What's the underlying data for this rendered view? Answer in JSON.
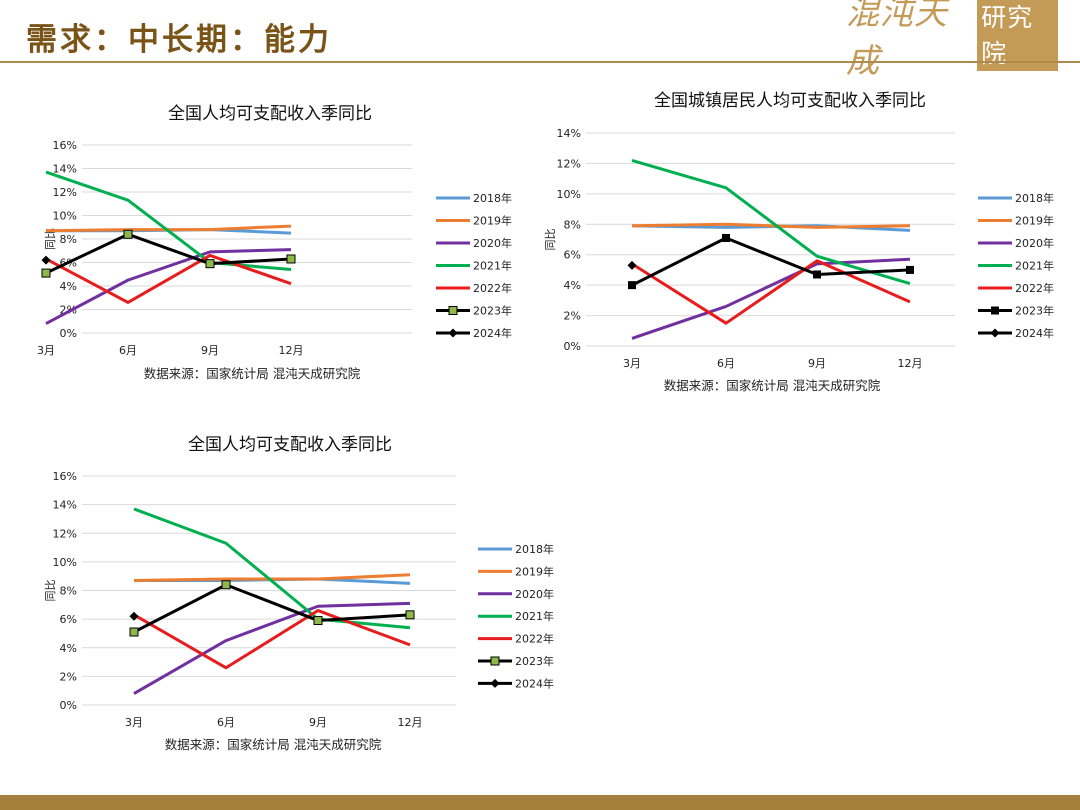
{
  "header": {
    "title": "需求：中长期：能力",
    "brand_main": "混沌天成",
    "brand_sub": "研究院"
  },
  "colors": {
    "header_text": "#7a5417",
    "brand": "#c49a57",
    "rule": "#b08a4c",
    "footer": "#a57f3c"
  },
  "chart_data": [
    {
      "type": "line",
      "title": "全国人均可支配收入季同比",
      "ylabel": "同比",
      "categories": [
        "3月",
        "6月",
        "9月",
        "12月"
      ],
      "ylim": [
        0,
        16
      ],
      "yticks": [
        "0%",
        "2%",
        "4%",
        "6%",
        "8%",
        "10%",
        "12%",
        "14%",
        "16%"
      ],
      "grid": true,
      "legend_position": "right",
      "source": "数据来源：国家统计局 混沌天成研究院",
      "series": [
        {
          "name": "2018年",
          "color": "#5b9bd5",
          "marker": "none",
          "values": [
            8.7,
            8.7,
            8.8,
            8.5
          ]
        },
        {
          "name": "2019年",
          "color": "#ed7d31",
          "marker": "none",
          "values": [
            8.7,
            8.8,
            8.8,
            9.1
          ]
        },
        {
          "name": "2020年",
          "color": "#7030a0",
          "marker": "none",
          "values": [
            0.8,
            4.5,
            6.9,
            7.1
          ]
        },
        {
          "name": "2021年",
          "color": "#00b050",
          "marker": "none",
          "values": [
            13.7,
            11.3,
            6.0,
            5.4
          ]
        },
        {
          "name": "2022年",
          "color": "#e81c1c",
          "marker": "none",
          "values": [
            6.3,
            2.6,
            6.6,
            4.2
          ]
        },
        {
          "name": "2023年",
          "color": "#000000",
          "marker": "square-green",
          "values": [
            5.1,
            8.4,
            5.9,
            6.3
          ]
        },
        {
          "name": "2024年",
          "color": "#000000",
          "marker": "diamond",
          "values": [
            6.2,
            null,
            null,
            null
          ]
        }
      ]
    },
    {
      "type": "line",
      "title": "全国城镇居民人均可支配收入季同比",
      "ylabel": "同比",
      "categories": [
        "3月",
        "6月",
        "9月",
        "12月"
      ],
      "ylim": [
        0,
        14
      ],
      "yticks": [
        "0%",
        "2%",
        "4%",
        "6%",
        "8%",
        "10%",
        "12%",
        "14%"
      ],
      "grid": true,
      "legend_position": "right",
      "source": "数据来源：国家统计局 混沌天成研究院",
      "series": [
        {
          "name": "2018年",
          "color": "#5b9bd5",
          "marker": "none",
          "values": [
            7.9,
            7.8,
            7.9,
            7.6
          ]
        },
        {
          "name": "2019年",
          "color": "#ed7d31",
          "marker": "none",
          "values": [
            7.9,
            8.0,
            7.8,
            7.9
          ]
        },
        {
          "name": "2020年",
          "color": "#7030a0",
          "marker": "none",
          "values": [
            0.5,
            2.6,
            5.4,
            5.7
          ]
        },
        {
          "name": "2021年",
          "color": "#00b050",
          "marker": "none",
          "values": [
            12.2,
            10.4,
            5.9,
            4.1
          ]
        },
        {
          "name": "2022年",
          "color": "#e81c1c",
          "marker": "none",
          "values": [
            5.4,
            1.5,
            5.6,
            2.9
          ]
        },
        {
          "name": "2023年",
          "color": "#000000",
          "marker": "square",
          "values": [
            4.0,
            7.1,
            4.7,
            5.0
          ]
        },
        {
          "name": "2024年",
          "color": "#000000",
          "marker": "diamond",
          "values": [
            5.3,
            null,
            null,
            null
          ]
        }
      ]
    },
    {
      "type": "line",
      "title": "全国人均可支配收入季同比",
      "ylabel": "同比",
      "categories": [
        "3月",
        "6月",
        "9月",
        "12月"
      ],
      "ylim": [
        0,
        16
      ],
      "yticks": [
        "0%",
        "2%",
        "4%",
        "6%",
        "8%",
        "10%",
        "12%",
        "14%",
        "16%"
      ],
      "grid": true,
      "legend_position": "right",
      "source": "数据来源：国家统计局 混沌天成研究院",
      "series": [
        {
          "name": "2018年",
          "color": "#5b9bd5",
          "marker": "none",
          "values": [
            8.7,
            8.7,
            8.8,
            8.5
          ]
        },
        {
          "name": "2019年",
          "color": "#ed7d31",
          "marker": "none",
          "values": [
            8.7,
            8.8,
            8.8,
            9.1
          ]
        },
        {
          "name": "2020年",
          "color": "#7030a0",
          "marker": "none",
          "values": [
            0.8,
            4.5,
            6.9,
            7.1
          ]
        },
        {
          "name": "2021年",
          "color": "#00b050",
          "marker": "none",
          "values": [
            13.7,
            11.3,
            6.0,
            5.4
          ]
        },
        {
          "name": "2022年",
          "color": "#e81c1c",
          "marker": "none",
          "values": [
            6.3,
            2.6,
            6.6,
            4.2
          ]
        },
        {
          "name": "2023年",
          "color": "#000000",
          "marker": "square-green",
          "values": [
            5.1,
            8.4,
            5.9,
            6.3
          ]
        },
        {
          "name": "2024年",
          "color": "#000000",
          "marker": "diamond",
          "values": [
            6.2,
            null,
            null,
            null
          ]
        }
      ]
    }
  ]
}
